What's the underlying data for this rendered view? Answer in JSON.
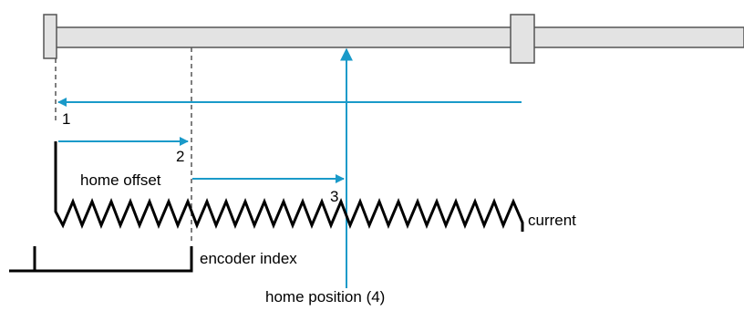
{
  "colors": {
    "arrow": "#1a9ac9",
    "rail_fill": "#e3e3e3",
    "rail_stroke": "#555555",
    "signal": "#000000",
    "dashed": "#555555"
  },
  "labels": {
    "step1": "1",
    "step2": "2",
    "step3": "3",
    "home_offset": "home offset",
    "current": "current",
    "encoder_index": "encoder index",
    "home_position": "home position (4)"
  }
}
